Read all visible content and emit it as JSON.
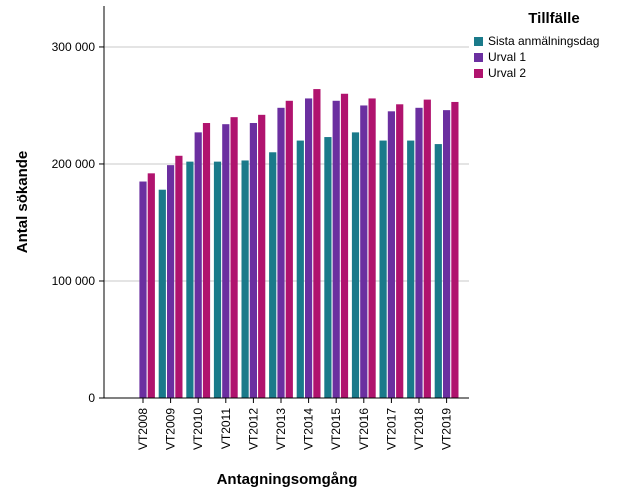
{
  "chart_data": {
    "type": "bar",
    "title": "",
    "xlabel": "Antagningsomgång",
    "ylabel": "Antal sökande",
    "ylim": [
      0,
      335000
    ],
    "yticks": [
      0,
      100000,
      200000,
      300000
    ],
    "ytick_labels": [
      "0",
      "100 000",
      "200 000",
      "300 000"
    ],
    "grid": "horizontal",
    "legend_position": "top-right",
    "legend_title": "Tillfälle",
    "categories": [
      "VT2008",
      "VT2009",
      "VT2010",
      "VT2011",
      "VT2012",
      "VT2013",
      "VT2014",
      "VT2015",
      "VT2016",
      "VT2017",
      "VT2018",
      "VT2019"
    ],
    "series": [
      {
        "name": "Sista anmälningsdag",
        "color": "#1a7a8a",
        "values": [
          null,
          178000,
          202000,
          202000,
          203000,
          210000,
          220000,
          223000,
          227000,
          220000,
          220000,
          217000
        ]
      },
      {
        "name": "Urval 1",
        "color": "#6b2fa0",
        "values": [
          185000,
          199000,
          227000,
          234000,
          235000,
          248000,
          256000,
          254000,
          250000,
          245000,
          248000,
          246000
        ]
      },
      {
        "name": "Urval 2",
        "color": "#b0136e",
        "values": [
          192000,
          207000,
          235000,
          240000,
          242000,
          254000,
          264000,
          260000,
          256000,
          251000,
          255000,
          253000
        ]
      }
    ]
  }
}
